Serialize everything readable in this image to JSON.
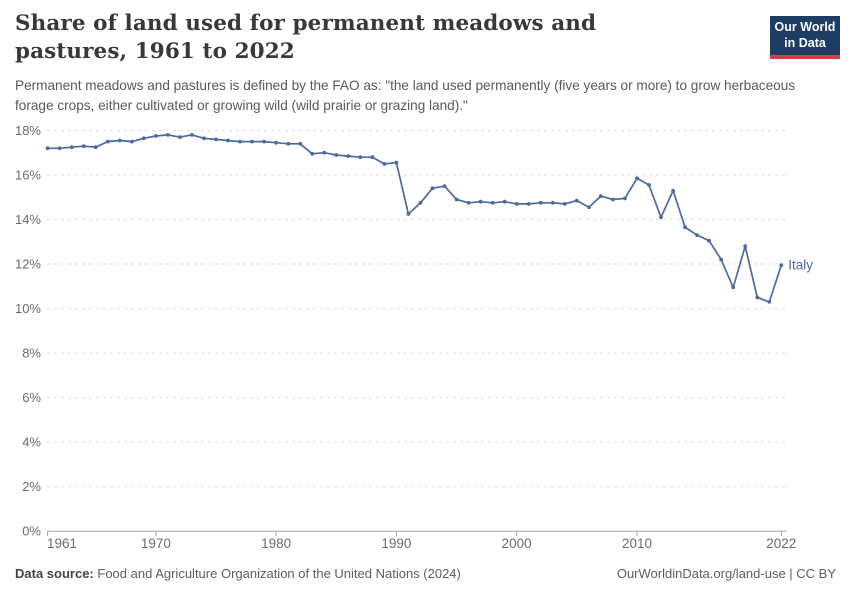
{
  "header": {
    "title": "Share of land used for permanent meadows and pastures, 1961 to 2022",
    "subtitle": "Permanent meadows and pastures is defined by the FAO as: \"the land used permanently (five years or more) to grow herbaceous forage crops, either cultivated or growing wild (wild prairie or grazing land).\"",
    "logo": {
      "line1": "Our World",
      "line2": "in Data"
    }
  },
  "chart_data": {
    "type": "line",
    "title": "Share of land used for permanent meadows and pastures, 1961 to 2022",
    "entity": "Italy",
    "end_label": "Italy",
    "xlabel": "",
    "ylabel": "",
    "ylim": [
      0,
      18
    ],
    "xlim": [
      1961,
      2022
    ],
    "grid": "horizontal-dashed",
    "legend_position": "end-of-line",
    "line_color": "#4C6A9C",
    "ytick_values": [
      0,
      2,
      4,
      6,
      8,
      10,
      12,
      14,
      16,
      18
    ],
    "ytick_labels": [
      "0%",
      "2%",
      "4%",
      "6%",
      "8%",
      "10%",
      "12%",
      "14%",
      "16%",
      "18%"
    ],
    "xtick_values": [
      1961,
      1970,
      1980,
      1990,
      2000,
      2010,
      2022
    ],
    "x": [
      1961,
      1962,
      1963,
      1964,
      1965,
      1966,
      1967,
      1968,
      1969,
      1970,
      1971,
      1972,
      1973,
      1974,
      1975,
      1976,
      1977,
      1978,
      1979,
      1980,
      1981,
      1982,
      1983,
      1984,
      1985,
      1986,
      1987,
      1988,
      1989,
      1990,
      1991,
      1992,
      1993,
      1994,
      1995,
      1996,
      1997,
      1998,
      1999,
      2000,
      2001,
      2002,
      2003,
      2004,
      2005,
      2006,
      2007,
      2008,
      2009,
      2010,
      2011,
      2012,
      2013,
      2014,
      2015,
      2016,
      2017,
      2018,
      2019,
      2020,
      2021,
      2022
    ],
    "series": [
      {
        "name": "Italy",
        "values": [
          17.2,
          17.2,
          17.25,
          17.3,
          17.25,
          17.5,
          17.55,
          17.5,
          17.65,
          17.75,
          17.8,
          17.7,
          17.8,
          17.65,
          17.6,
          17.55,
          17.5,
          17.5,
          17.5,
          17.45,
          17.4,
          17.4,
          16.95,
          17.0,
          16.9,
          16.85,
          16.8,
          16.8,
          16.5,
          16.55,
          14.25,
          14.75,
          15.4,
          15.5,
          14.9,
          14.75,
          14.8,
          14.75,
          14.8,
          14.7,
          14.7,
          14.75,
          14.75,
          14.7,
          14.85,
          14.55,
          15.05,
          14.9,
          14.95,
          15.85,
          15.55,
          14.1,
          15.3,
          13.65,
          13.3,
          13.05,
          12.2,
          10.95,
          12.8,
          10.5,
          10.3,
          11.95
        ]
      }
    ]
  },
  "footer": {
    "datasource_label": "Data source:",
    "datasource": "Food and Agriculture Organization of the United Nations (2024)",
    "link": "OurWorldinData.org/land-use | CC BY"
  },
  "colors": {
    "line": "#4C6A9C",
    "gridline": "#dcdcdc",
    "axis_baseline": "#a5a5a5",
    "tick_label": "#6b6b6b",
    "logo_bg": "#1d3d63",
    "logo_accent": "#dc3949"
  }
}
